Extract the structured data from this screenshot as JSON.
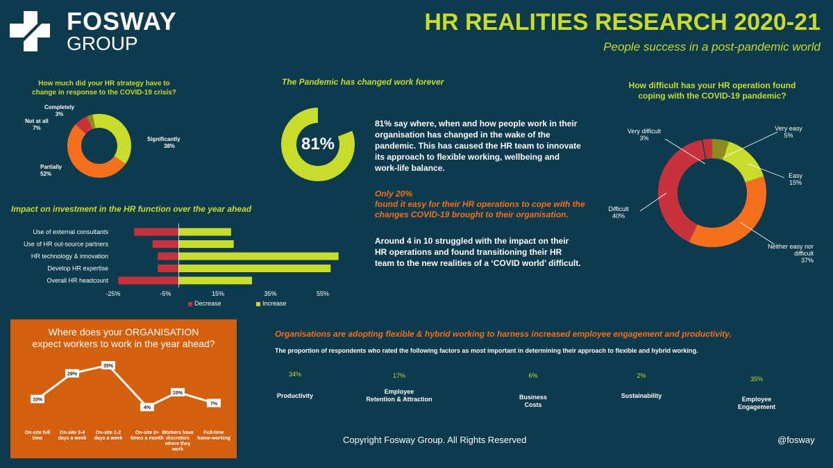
{
  "brand": {
    "name_line1": "FOSWAY",
    "name_line2": "GROUP"
  },
  "header": {
    "title": "HR REALITIES RESEARCH 2020-21",
    "subtitle": "People success in a post-pandemic world"
  },
  "colors": {
    "background": "#0e3a4d",
    "lime": "#c8dc2c",
    "orange": "#f4701c",
    "red": "#c8323c",
    "olive": "#8c8c1e",
    "panel": "#d2600e"
  },
  "strategy": {
    "title_line1": "How much did your HR strategy have to",
    "title_line2": "change in response to the COVID-19 crisis?"
  },
  "pandemic": {
    "headline": "The Pandemic has changed work forever",
    "percent_label": "81%",
    "paragraph1": "81%  say where, when and how people work in their organisation has changed in the wake of the pandemic. This has caused the HR team to innovate its approach to flexible working, wellbeing and work-life balance.",
    "only_line": "Only 20%",
    "only_rest": "found it easy for their HR operations to cope with the changes COVID-19 brought to their organisation.",
    "paragraph3": "Around 4 in 10 struggled with the impact on their HR operations and found transitioning their HR team to the new realities of a ‘COVID world’ difficult."
  },
  "difficulty": {
    "title_line1": "How difficult has your HR operation found",
    "title_line2": "coping with the COVID-19 pandemic?"
  },
  "investment": {
    "title": "Impact on investment in the HR function over the year ahead"
  },
  "org": {
    "title_line1_pre": "Where does your ",
    "title_line1_em": "ORGANISATION",
    "title_line2": "expect workers to work in the year ahead?"
  },
  "factors": {
    "headline": "Organisations are adopting flexible & hybrid working to harness increased employee engagement and productivity.",
    "subtitle": "The proportion of respondents who rated the following factors as most important in determining their approach to flexible and hybrid working."
  },
  "footer": {
    "copyright": "Copyright Fosway Group.  All Rights Reserved",
    "handle": "@fosway"
  },
  "chart_data": [
    {
      "type": "pie",
      "id": "strategy",
      "donut": true,
      "slices": [
        {
          "label": "Significantly",
          "display": "38%",
          "value": 38
        },
        {
          "label": "Partially",
          "display": "52%",
          "value": 52
        },
        {
          "label": "Not at all",
          "display": "7%",
          "value": 7
        },
        {
          "label": "Completely",
          "display": "3%",
          "value": 3
        }
      ]
    },
    {
      "type": "pie",
      "id": "pandemic",
      "donut": true,
      "value": 81,
      "display": "81%"
    },
    {
      "type": "pie",
      "id": "difficulty",
      "donut": true,
      "slices": [
        {
          "label": "Very easy",
          "display": "5%",
          "value": 5
        },
        {
          "label": "Easy",
          "display": "15%",
          "value": 15
        },
        {
          "label": "Neither easy nor difficult",
          "display": "37%",
          "value": 37
        },
        {
          "label": "Difficult",
          "display": "40%",
          "value": 40
        },
        {
          "label": "Very difficult",
          "display": "3%",
          "value": 3
        }
      ]
    },
    {
      "type": "bar",
      "id": "investment",
      "orientation": "horizontal",
      "categories": [
        "Use of external consultants",
        "Use of HR out-source partners",
        "HR technology & innovation",
        "Develop HR expertise",
        "Overall HR headcount"
      ],
      "series": [
        {
          "name": "Decrease",
          "values": [
            -17,
            -10,
            -8,
            -8,
            -23
          ]
        },
        {
          "name": "Increase",
          "values": [
            20,
            21,
            61,
            58,
            28
          ]
        }
      ],
      "xticks": [
        "-25%",
        "-5%",
        "15%",
        "35%",
        "55%"
      ],
      "xlim": [
        -25,
        63
      ],
      "legend": "bottom"
    },
    {
      "type": "line",
      "id": "org",
      "categories": [
        "On-site full time",
        "On-site 3-4 days a week",
        "On-site 1-2 days a week",
        "On-site 2+ times a month",
        "Workers have discretion where they work",
        "Full-time home-working"
      ],
      "values": [
        10,
        29,
        35,
        4,
        15,
        7
      ],
      "labels": [
        "10%",
        "29%",
        "35%",
        "4%",
        "15%",
        "7%"
      ]
    },
    {
      "type": "table",
      "id": "factors",
      "categories": [
        "Productivity",
        "Employee Retention & Attraction",
        "Business Costs",
        "Sustainability",
        "Employee Engagement"
      ],
      "labels": [
        "34%",
        "17%",
        "6%",
        "2%",
        "35%"
      ],
      "values": [
        34,
        17,
        6,
        2,
        35
      ]
    }
  ]
}
